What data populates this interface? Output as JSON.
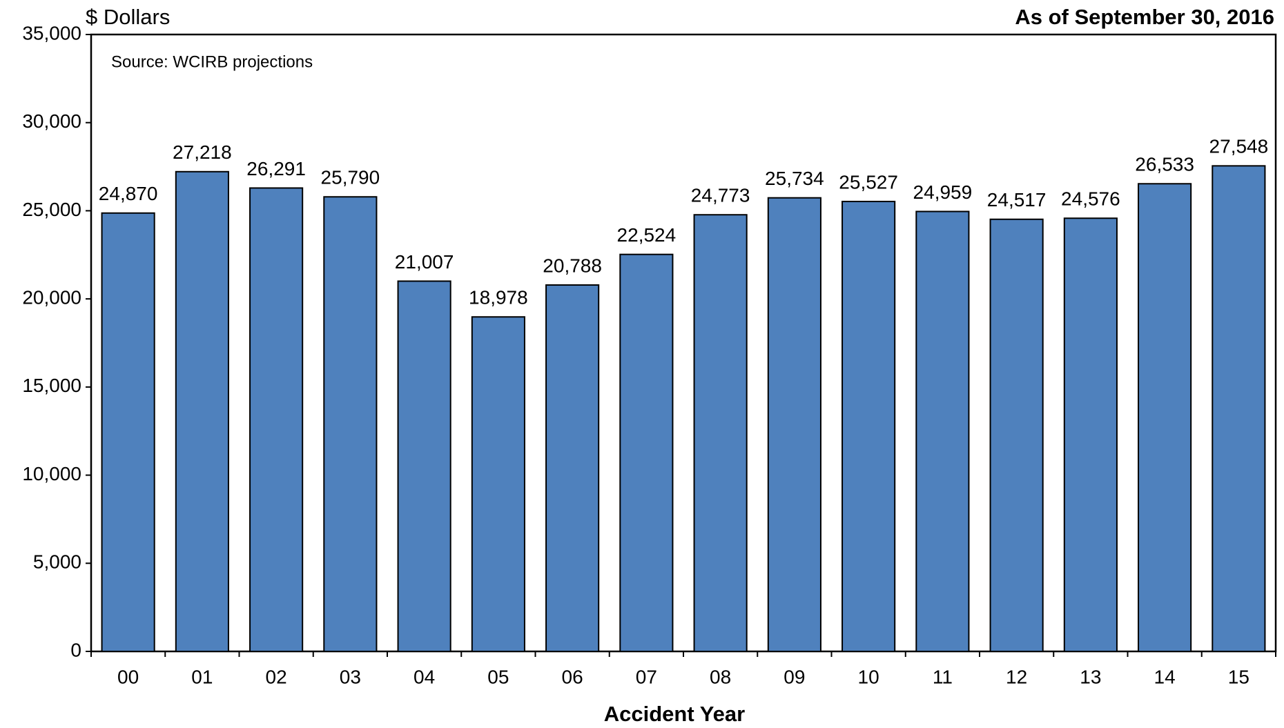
{
  "chart_data": {
    "type": "bar",
    "y_label": "$ Dollars",
    "subtitle": "As of September 30, 2016",
    "annotation": "Source: WCIRB projections",
    "x_label": "Accident Year",
    "categories": [
      "00",
      "01",
      "02",
      "03",
      "04",
      "05",
      "06",
      "07",
      "08",
      "09",
      "10",
      "11",
      "12",
      "13",
      "14",
      "15"
    ],
    "values": [
      24870,
      27218,
      26291,
      25790,
      21007,
      18978,
      20788,
      22524,
      24773,
      25734,
      25527,
      24959,
      24517,
      24576,
      26533,
      27548
    ],
    "value_labels": [
      "24,870",
      "27,218",
      "26,291",
      "25,790",
      "21,007",
      "18,978",
      "20,788",
      "22,524",
      "24,773",
      "25,734",
      "25,527",
      "24,959",
      "24,517",
      "24,576",
      "26,533",
      "27,548"
    ],
    "color": "#4f81bd",
    "ylim": [
      0,
      35000
    ],
    "yticks": [
      0,
      {
        "value": 5000,
        "label": "5,000"
      },
      {
        "value": 10000,
        "label": "10,000"
      },
      {
        "value": 15000,
        "label": "15,000"
      },
      {
        "value": 20000,
        "label": "20,000"
      },
      {
        "value": 25000,
        "label": "25,000"
      },
      {
        "value": 30000,
        "label": "30,000"
      },
      {
        "value": 35000,
        "label": "35,000"
      }
    ],
    "grid": false
  }
}
